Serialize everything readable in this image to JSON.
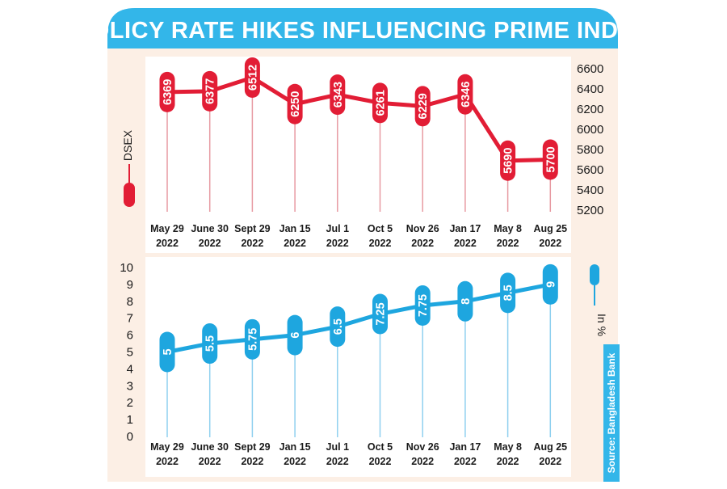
{
  "title": "POLICY RATE HIKES INFLUENCING PRIME INDEX",
  "source": "Source: Bangladesh Bank",
  "colors": {
    "red": "#e21d35",
    "blue": "#1ea6df",
    "panel": "#fcefe5",
    "title_bg": "#33b6e9",
    "stem_red": "#e79aa2",
    "stem_blue": "#8fd0ef"
  },
  "chart_data": [
    {
      "type": "line",
      "ylabel": "DSEX",
      "categories": [
        [
          "May 29",
          "2022"
        ],
        [
          "June 30",
          "2022"
        ],
        [
          "Sept 29",
          "2022"
        ],
        [
          "Jan 15",
          "2022"
        ],
        [
          "Jul 1",
          "2022"
        ],
        [
          "Oct 5",
          "2022"
        ],
        [
          "Nov 26",
          "2022"
        ],
        [
          "Jan 17",
          "2022"
        ],
        [
          "May 8",
          "2022"
        ],
        [
          "Aug 25",
          "2022"
        ]
      ],
      "values": [
        6369,
        6377,
        6512,
        6250,
        6343,
        6261,
        6229,
        6346,
        5690,
        5700
      ],
      "labels": [
        "6369",
        "6377",
        "6512",
        "6250",
        "6343",
        "6261",
        "6229",
        "6346",
        "5690",
        "5700"
      ],
      "yticks": [
        6600,
        6400,
        6200,
        6000,
        5800,
        5600,
        5400,
        5200
      ],
      "ylim": [
        5200,
        6600
      ],
      "grid": false
    },
    {
      "type": "line",
      "ylabel": "In %",
      "categories": [
        [
          "May 29",
          "2022"
        ],
        [
          "June 30",
          "2022"
        ],
        [
          "Sept 29",
          "2022"
        ],
        [
          "Jan 15",
          "2022"
        ],
        [
          "Jul 1",
          "2022"
        ],
        [
          "Oct 5",
          "2022"
        ],
        [
          "Nov 26",
          "2022"
        ],
        [
          "Jan 17",
          "2022"
        ],
        [
          "May 8",
          "2022"
        ],
        [
          "Aug 25",
          "2022"
        ]
      ],
      "values": [
        5,
        5.5,
        5.75,
        6,
        6.5,
        7.25,
        7.75,
        8,
        8.5,
        9
      ],
      "labels": [
        "5",
        "5.5",
        "5.75",
        "6",
        "6.5",
        "7.25",
        "7.75",
        "8",
        "8.5",
        "9"
      ],
      "yticks": [
        10,
        9,
        8,
        7,
        6,
        5,
        4,
        3,
        2,
        1,
        0
      ],
      "ylim": [
        0,
        10
      ],
      "grid": false
    }
  ]
}
